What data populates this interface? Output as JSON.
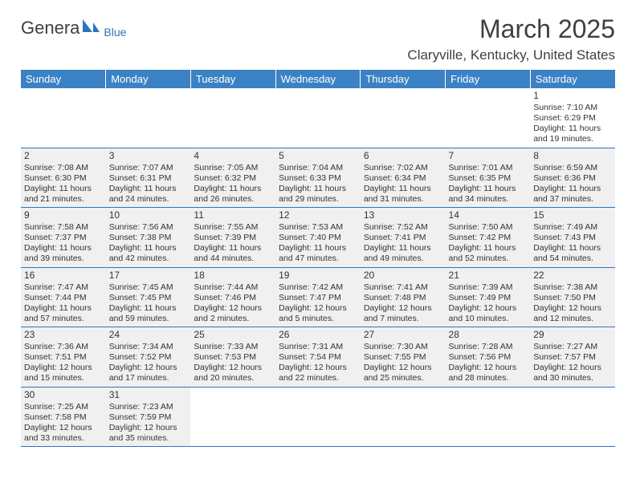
{
  "logo": {
    "gen": "Genera",
    "blue": "Blue"
  },
  "title": "March 2025",
  "location": "Claryville, Kentucky, United States",
  "dayHeaders": [
    "Sunday",
    "Monday",
    "Tuesday",
    "Wednesday",
    "Thursday",
    "Friday",
    "Saturday"
  ],
  "colors": {
    "header_bg": "#3b82c4",
    "header_fg": "#ffffff",
    "accent": "#2b76bd",
    "shade": "#f0f0f0"
  },
  "weeks": [
    [
      null,
      null,
      null,
      null,
      null,
      null,
      {
        "n": "1",
        "sunrise": "7:10 AM",
        "sunset": "6:29 PM",
        "day_h": "11",
        "day_m": "19"
      }
    ],
    [
      {
        "n": "2",
        "sunrise": "7:08 AM",
        "sunset": "6:30 PM",
        "day_h": "11",
        "day_m": "21"
      },
      {
        "n": "3",
        "sunrise": "7:07 AM",
        "sunset": "6:31 PM",
        "day_h": "11",
        "day_m": "24"
      },
      {
        "n": "4",
        "sunrise": "7:05 AM",
        "sunset": "6:32 PM",
        "day_h": "11",
        "day_m": "26"
      },
      {
        "n": "5",
        "sunrise": "7:04 AM",
        "sunset": "6:33 PM",
        "day_h": "11",
        "day_m": "29"
      },
      {
        "n": "6",
        "sunrise": "7:02 AM",
        "sunset": "6:34 PM",
        "day_h": "11",
        "day_m": "31"
      },
      {
        "n": "7",
        "sunrise": "7:01 AM",
        "sunset": "6:35 PM",
        "day_h": "11",
        "day_m": "34"
      },
      {
        "n": "8",
        "sunrise": "6:59 AM",
        "sunset": "6:36 PM",
        "day_h": "11",
        "day_m": "37"
      }
    ],
    [
      {
        "n": "9",
        "sunrise": "7:58 AM",
        "sunset": "7:37 PM",
        "day_h": "11",
        "day_m": "39"
      },
      {
        "n": "10",
        "sunrise": "7:56 AM",
        "sunset": "7:38 PM",
        "day_h": "11",
        "day_m": "42"
      },
      {
        "n": "11",
        "sunrise": "7:55 AM",
        "sunset": "7:39 PM",
        "day_h": "11",
        "day_m": "44"
      },
      {
        "n": "12",
        "sunrise": "7:53 AM",
        "sunset": "7:40 PM",
        "day_h": "11",
        "day_m": "47"
      },
      {
        "n": "13",
        "sunrise": "7:52 AM",
        "sunset": "7:41 PM",
        "day_h": "11",
        "day_m": "49"
      },
      {
        "n": "14",
        "sunrise": "7:50 AM",
        "sunset": "7:42 PM",
        "day_h": "11",
        "day_m": "52"
      },
      {
        "n": "15",
        "sunrise": "7:49 AM",
        "sunset": "7:43 PM",
        "day_h": "11",
        "day_m": "54"
      }
    ],
    [
      {
        "n": "16",
        "sunrise": "7:47 AM",
        "sunset": "7:44 PM",
        "day_h": "11",
        "day_m": "57"
      },
      {
        "n": "17",
        "sunrise": "7:45 AM",
        "sunset": "7:45 PM",
        "day_h": "11",
        "day_m": "59"
      },
      {
        "n": "18",
        "sunrise": "7:44 AM",
        "sunset": "7:46 PM",
        "day_h": "12",
        "day_m": "2"
      },
      {
        "n": "19",
        "sunrise": "7:42 AM",
        "sunset": "7:47 PM",
        "day_h": "12",
        "day_m": "5"
      },
      {
        "n": "20",
        "sunrise": "7:41 AM",
        "sunset": "7:48 PM",
        "day_h": "12",
        "day_m": "7"
      },
      {
        "n": "21",
        "sunrise": "7:39 AM",
        "sunset": "7:49 PM",
        "day_h": "12",
        "day_m": "10"
      },
      {
        "n": "22",
        "sunrise": "7:38 AM",
        "sunset": "7:50 PM",
        "day_h": "12",
        "day_m": "12"
      }
    ],
    [
      {
        "n": "23",
        "sunrise": "7:36 AM",
        "sunset": "7:51 PM",
        "day_h": "12",
        "day_m": "15"
      },
      {
        "n": "24",
        "sunrise": "7:34 AM",
        "sunset": "7:52 PM",
        "day_h": "12",
        "day_m": "17"
      },
      {
        "n": "25",
        "sunrise": "7:33 AM",
        "sunset": "7:53 PM",
        "day_h": "12",
        "day_m": "20"
      },
      {
        "n": "26",
        "sunrise": "7:31 AM",
        "sunset": "7:54 PM",
        "day_h": "12",
        "day_m": "22"
      },
      {
        "n": "27",
        "sunrise": "7:30 AM",
        "sunset": "7:55 PM",
        "day_h": "12",
        "day_m": "25"
      },
      {
        "n": "28",
        "sunrise": "7:28 AM",
        "sunset": "7:56 PM",
        "day_h": "12",
        "day_m": "28"
      },
      {
        "n": "29",
        "sunrise": "7:27 AM",
        "sunset": "7:57 PM",
        "day_h": "12",
        "day_m": "30"
      }
    ],
    [
      {
        "n": "30",
        "sunrise": "7:25 AM",
        "sunset": "7:58 PM",
        "day_h": "12",
        "day_m": "33"
      },
      {
        "n": "31",
        "sunrise": "7:23 AM",
        "sunset": "7:59 PM",
        "day_h": "12",
        "day_m": "35"
      },
      null,
      null,
      null,
      null,
      null
    ]
  ]
}
